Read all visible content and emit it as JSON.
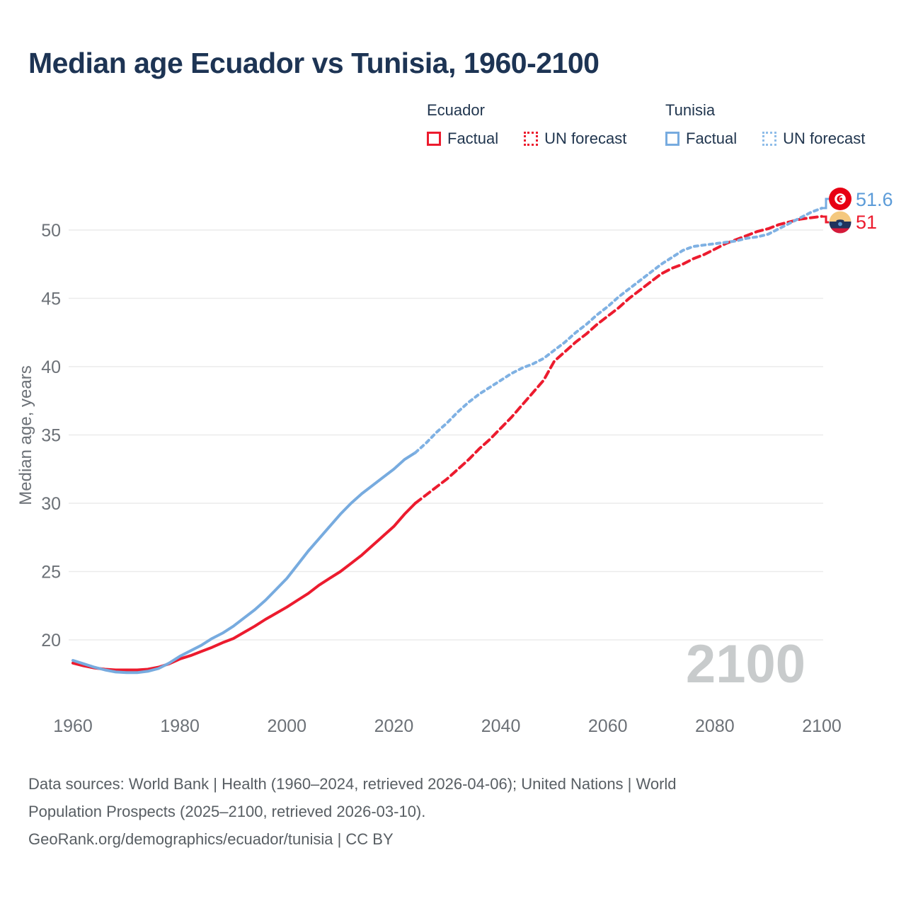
{
  "header": {
    "title": "Median age Ecuador vs Tunisia, 1960-2100"
  },
  "legend": {
    "position": "top-right",
    "groups": [
      {
        "name": "Ecuador",
        "factual_label": "Factual",
        "forecast_label": "UN forecast",
        "color": "#ec1b2e"
      },
      {
        "name": "Tunisia",
        "factual_label": "Factual",
        "forecast_label": "UN forecast",
        "color": "#77abdf"
      }
    ]
  },
  "watermark": {
    "text": "2100"
  },
  "end_labels": [
    {
      "country": "Tunisia",
      "value": "51.6",
      "color": "#5b9bd8",
      "flag": "tunisia-flag"
    },
    {
      "country": "Ecuador",
      "value": "51",
      "color": "#ec1b2e",
      "flag": "ecuador-flag"
    }
  ],
  "footer": {
    "line1": "Data sources: World Bank | Health (1960–2024, retrieved 2026-04-06); United Nations | World",
    "line2": "Population Prospects (2025–2100, retrieved 2026-03-10).",
    "line3": "GeoRank.org/demographics/ecuador/tunisia | CC BY"
  },
  "chart_data": {
    "type": "line",
    "title": "Median age Ecuador vs Tunisia, 1960-2100",
    "xlabel": "",
    "ylabel": "Median age, years",
    "xlim": [
      1960,
      2100
    ],
    "ylim": [
      17,
      53
    ],
    "grid": "horizontal",
    "x_ticks": [
      1960,
      1980,
      2000,
      2020,
      2040,
      2060,
      2080,
      2100
    ],
    "y_ticks": [
      20,
      25,
      30,
      35,
      40,
      45,
      50
    ],
    "series": [
      {
        "name": "Ecuador factual",
        "style": "solid",
        "color": "#ec1b2e",
        "points": [
          [
            1960,
            18.3
          ],
          [
            1962,
            18.1
          ],
          [
            1964,
            17.95
          ],
          [
            1966,
            17.85
          ],
          [
            1968,
            17.8
          ],
          [
            1970,
            17.8
          ],
          [
            1972,
            17.8
          ],
          [
            1974,
            17.85
          ],
          [
            1976,
            18.0
          ],
          [
            1978,
            18.25
          ],
          [
            1980,
            18.6
          ],
          [
            1982,
            18.85
          ],
          [
            1984,
            19.15
          ],
          [
            1986,
            19.45
          ],
          [
            1988,
            19.8
          ],
          [
            1990,
            20.1
          ],
          [
            1992,
            20.55
          ],
          [
            1994,
            21.0
          ],
          [
            1996,
            21.5
          ],
          [
            1998,
            21.95
          ],
          [
            2000,
            22.4
          ],
          [
            2002,
            22.9
          ],
          [
            2004,
            23.4
          ],
          [
            2006,
            24.0
          ],
          [
            2008,
            24.5
          ],
          [
            2010,
            25.0
          ],
          [
            2012,
            25.6
          ],
          [
            2014,
            26.2
          ],
          [
            2016,
            26.9
          ],
          [
            2018,
            27.6
          ],
          [
            2020,
            28.3
          ],
          [
            2022,
            29.2
          ],
          [
            2024,
            30.0
          ]
        ]
      },
      {
        "name": "Ecuador UN forecast",
        "style": "dashed",
        "color": "#ec1b2e",
        "points": [
          [
            2024,
            30.0
          ],
          [
            2026,
            30.6
          ],
          [
            2028,
            31.2
          ],
          [
            2030,
            31.8
          ],
          [
            2032,
            32.5
          ],
          [
            2034,
            33.2
          ],
          [
            2036,
            34.0
          ],
          [
            2038,
            34.7
          ],
          [
            2040,
            35.5
          ],
          [
            2042,
            36.3
          ],
          [
            2044,
            37.2
          ],
          [
            2046,
            38.1
          ],
          [
            2048,
            39.0
          ],
          [
            2050,
            40.4
          ],
          [
            2052,
            41.1
          ],
          [
            2054,
            41.8
          ],
          [
            2056,
            42.4
          ],
          [
            2058,
            43.1
          ],
          [
            2060,
            43.7
          ],
          [
            2062,
            44.3
          ],
          [
            2064,
            45.0
          ],
          [
            2066,
            45.6
          ],
          [
            2068,
            46.2
          ],
          [
            2070,
            46.8
          ],
          [
            2072,
            47.2
          ],
          [
            2074,
            47.5
          ],
          [
            2076,
            47.9
          ],
          [
            2078,
            48.2
          ],
          [
            2080,
            48.6
          ],
          [
            2082,
            49.0
          ],
          [
            2084,
            49.3
          ],
          [
            2086,
            49.6
          ],
          [
            2088,
            49.9
          ],
          [
            2090,
            50.1
          ],
          [
            2092,
            50.4
          ],
          [
            2094,
            50.6
          ],
          [
            2096,
            50.8
          ],
          [
            2098,
            50.9
          ],
          [
            2100,
            51.0
          ]
        ]
      },
      {
        "name": "Tunisia factual",
        "style": "solid",
        "color": "#77abdf",
        "points": [
          [
            1960,
            18.5
          ],
          [
            1962,
            18.25
          ],
          [
            1964,
            18.0
          ],
          [
            1966,
            17.8
          ],
          [
            1968,
            17.65
          ],
          [
            1970,
            17.6
          ],
          [
            1972,
            17.6
          ],
          [
            1974,
            17.7
          ],
          [
            1976,
            17.9
          ],
          [
            1978,
            18.3
          ],
          [
            1980,
            18.8
          ],
          [
            1982,
            19.2
          ],
          [
            1984,
            19.6
          ],
          [
            1986,
            20.1
          ],
          [
            1988,
            20.5
          ],
          [
            1990,
            21.0
          ],
          [
            1992,
            21.6
          ],
          [
            1994,
            22.2
          ],
          [
            1996,
            22.9
          ],
          [
            1998,
            23.7
          ],
          [
            2000,
            24.5
          ],
          [
            2002,
            25.5
          ],
          [
            2004,
            26.5
          ],
          [
            2006,
            27.4
          ],
          [
            2008,
            28.3
          ],
          [
            2010,
            29.2
          ],
          [
            2012,
            30.0
          ],
          [
            2014,
            30.7
          ],
          [
            2016,
            31.3
          ],
          [
            2018,
            31.9
          ],
          [
            2020,
            32.5
          ],
          [
            2022,
            33.2
          ],
          [
            2024,
            33.7
          ]
        ]
      },
      {
        "name": "Tunisia UN forecast",
        "style": "dotted",
        "color": "#7fb1e3",
        "points": [
          [
            2024,
            33.7
          ],
          [
            2026,
            34.4
          ],
          [
            2028,
            35.2
          ],
          [
            2030,
            35.9
          ],
          [
            2032,
            36.7
          ],
          [
            2034,
            37.4
          ],
          [
            2036,
            38.0
          ],
          [
            2038,
            38.5
          ],
          [
            2040,
            39.0
          ],
          [
            2042,
            39.5
          ],
          [
            2044,
            39.9
          ],
          [
            2046,
            40.2
          ],
          [
            2048,
            40.6
          ],
          [
            2050,
            41.2
          ],
          [
            2052,
            41.8
          ],
          [
            2054,
            42.5
          ],
          [
            2056,
            43.1
          ],
          [
            2058,
            43.8
          ],
          [
            2060,
            44.4
          ],
          [
            2062,
            45.1
          ],
          [
            2064,
            45.7
          ],
          [
            2066,
            46.3
          ],
          [
            2068,
            46.9
          ],
          [
            2070,
            47.5
          ],
          [
            2072,
            48.0
          ],
          [
            2074,
            48.5
          ],
          [
            2076,
            48.8
          ],
          [
            2078,
            48.9
          ],
          [
            2080,
            49.0
          ],
          [
            2082,
            49.1
          ],
          [
            2084,
            49.2
          ],
          [
            2086,
            49.4
          ],
          [
            2088,
            49.5
          ],
          [
            2090,
            49.7
          ],
          [
            2092,
            50.1
          ],
          [
            2094,
            50.5
          ],
          [
            2096,
            50.9
          ],
          [
            2098,
            51.3
          ],
          [
            2100,
            51.6
          ]
        ]
      }
    ],
    "end_values": {
      "Tunisia": 51.6,
      "Ecuador": 51
    },
    "factual_period": "1960-2024",
    "forecast_period": "2025-2100"
  }
}
